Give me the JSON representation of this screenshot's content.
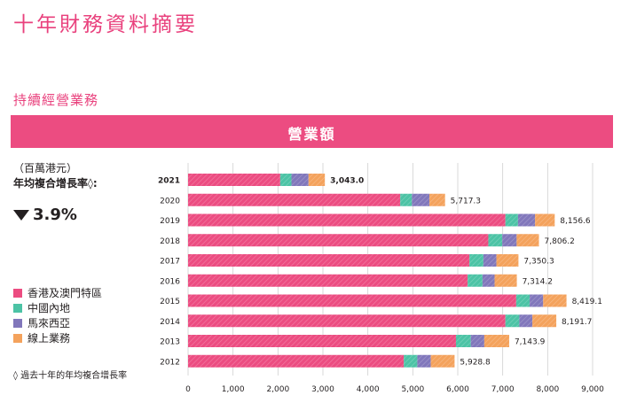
{
  "page": {
    "title": "十年財務資料摘要",
    "section": "持續經營業務",
    "banner": "營業額",
    "unit": "（百萬港元）",
    "cagr_label": "年均複合增長率◊:",
    "cagr_value": "3.9%",
    "cagr_direction": "down",
    "footnote": "◊ 過去十年的年均複合增長率"
  },
  "colors": {
    "accent": "#e9417d",
    "banner": "#ec4c81",
    "hk_macau": "#ec4c81",
    "mainland": "#4cc3a5",
    "malaysia": "#8177bb",
    "online": "#f4a25c",
    "grid": "#cfcfcf"
  },
  "legend": [
    {
      "label": "香港及澳門特區",
      "color": "#ec4c81"
    },
    {
      "label": "中國內地",
      "color": "#4cc3a5"
    },
    {
      "label": "馬來西亞",
      "color": "#8177bb"
    },
    {
      "label": "線上業務",
      "color": "#f4a25c"
    }
  ],
  "chart_data": {
    "type": "bar",
    "orientation": "horizontal",
    "stacked": true,
    "categories": [
      "2021",
      "2020",
      "2019",
      "2018",
      "2017",
      "2016",
      "2015",
      "2014",
      "2013",
      "2012"
    ],
    "totals_labels": [
      "3,043.0",
      "5,717.3",
      "8,156.6",
      "7,806.2",
      "7,350.3",
      "7,314.2",
      "8,419.1",
      "8,191.7",
      "7,143.9",
      "5,928.8"
    ],
    "highlight_category": "2021",
    "series": [
      {
        "name": "香港及澳門特區",
        "values": [
          2050,
          4720,
          7060,
          6680,
          6260,
          6220,
          7300,
          7060,
          5960,
          4800
        ]
      },
      {
        "name": "中國內地",
        "values": [
          250,
          260,
          280,
          310,
          310,
          330,
          300,
          310,
          330,
          300
        ]
      },
      {
        "name": "馬來西亞",
        "values": [
          380,
          390,
          380,
          320,
          290,
          270,
          300,
          290,
          300,
          300
        ]
      },
      {
        "name": "線上業務",
        "values": [
          363,
          347,
          437,
          496,
          490,
          494,
          519,
          532,
          554,
          529
        ]
      }
    ],
    "xlim": [
      0,
      9000
    ],
    "xticks": [
      "0",
      "1,000",
      "2,000",
      "3,000",
      "4,000",
      "5,000",
      "6,000",
      "7,000",
      "8,000",
      "9,000"
    ],
    "grid": "vertical"
  }
}
